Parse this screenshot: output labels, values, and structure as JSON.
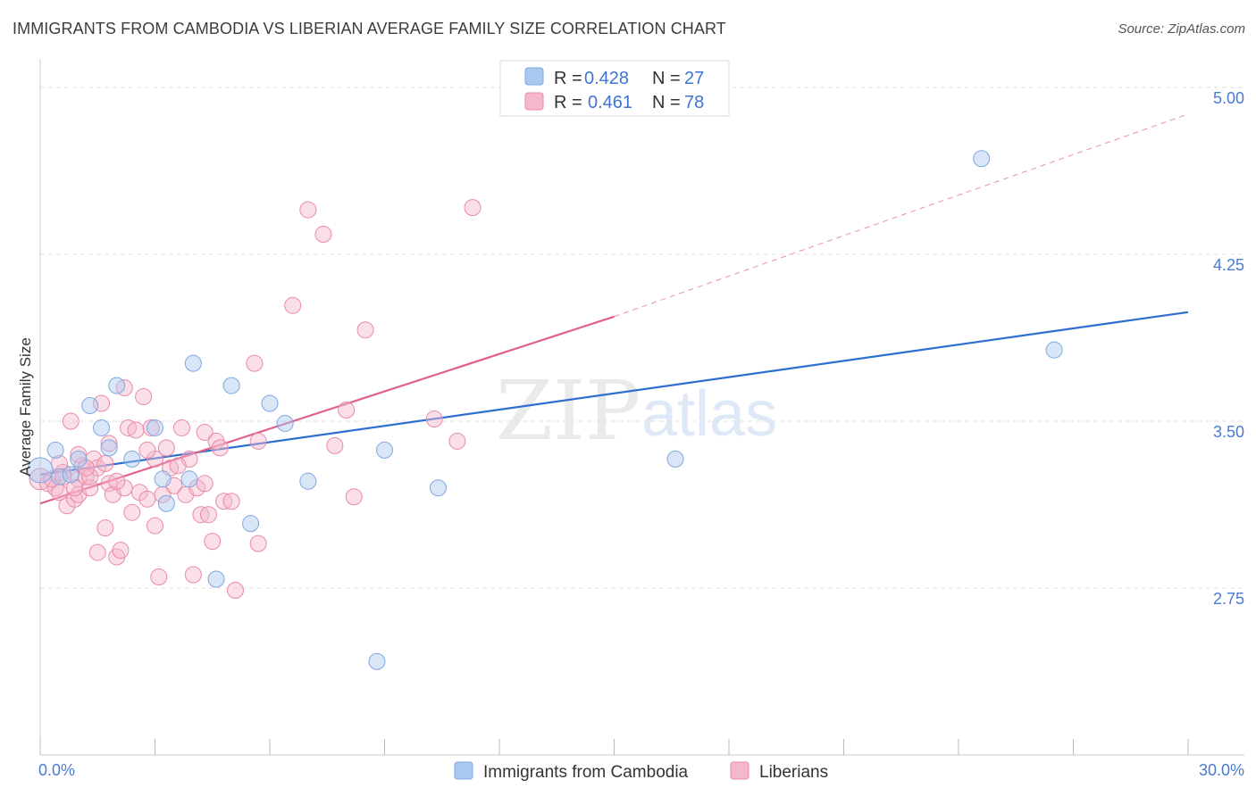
{
  "title": "IMMIGRANTS FROM CAMBODIA VS LIBERIAN AVERAGE FAMILY SIZE CORRELATION CHART",
  "source": "Source: ZipAtlas.com",
  "watermark": {
    "zip": "ZIP",
    "atlas": "atlas"
  },
  "colors": {
    "blue_fill": "#aac8ef",
    "blue_stroke": "#7ea7e0",
    "blue_line": "#2f6fd0",
    "pink_fill": "#f5b8cb",
    "pink_stroke": "#e98aa8",
    "pink_line": "#e0608a",
    "grid": "#e2e2e2",
    "tick_text": "#4a7bd0"
  },
  "chart_data": {
    "type": "scatter",
    "title": "IMMIGRANTS FROM CAMBODIA VS LIBERIAN AVERAGE FAMILY SIZE CORRELATION CHART",
    "xlabel": "",
    "ylabel": "Average Family Size",
    "xlim": [
      0,
      30
    ],
    "ylim": [
      2.0,
      5.08
    ],
    "x_tick_labels": [
      "0.0%",
      "30.0%"
    ],
    "y_ticks": [
      2.75,
      3.5,
      4.25,
      5.0
    ],
    "y_tick_labels": [
      "2.75",
      "3.50",
      "4.25",
      "5.00"
    ],
    "grid": true,
    "legend_stats": [
      {
        "r_label": "R = ",
        "r_value": "0.428",
        "n_label": "N = ",
        "n_value": "27"
      },
      {
        "r_label": "R = ",
        "r_value": "0.461",
        "n_label": "N = ",
        "n_value": "78"
      }
    ],
    "series": [
      {
        "name": "Immigrants from Cambodia",
        "color": "blue",
        "trend": {
          "x0": 0,
          "y0": 3.26,
          "x1": 30,
          "y1": 3.99,
          "dashed_to": null
        },
        "points": [
          [
            0.0,
            3.28,
            14
          ],
          [
            0.4,
            3.37,
            9
          ],
          [
            0.5,
            3.25,
            9
          ],
          [
            0.8,
            3.26,
            9
          ],
          [
            1.0,
            3.33,
            9
          ],
          [
            1.3,
            3.57,
            9
          ],
          [
            1.6,
            3.47,
            9
          ],
          [
            1.8,
            3.38,
            9
          ],
          [
            2.0,
            3.66,
            9
          ],
          [
            2.4,
            3.33,
            9
          ],
          [
            3.0,
            3.47,
            9
          ],
          [
            3.2,
            3.24,
            9
          ],
          [
            3.3,
            3.13,
            9
          ],
          [
            3.9,
            3.24,
            9
          ],
          [
            4.0,
            3.76,
            9
          ],
          [
            4.6,
            2.79,
            9
          ],
          [
            5.0,
            3.66,
            9
          ],
          [
            5.5,
            3.04,
            9
          ],
          [
            6.0,
            3.58,
            9
          ],
          [
            6.4,
            3.49,
            9
          ],
          [
            7.0,
            3.23,
            9
          ],
          [
            9.0,
            3.37,
            9
          ],
          [
            8.8,
            2.42,
            9
          ],
          [
            10.4,
            3.2,
            9
          ],
          [
            16.6,
            3.33,
            9
          ],
          [
            24.6,
            4.68,
            9
          ],
          [
            26.5,
            3.82,
            9
          ]
        ]
      },
      {
        "name": "Liberians",
        "color": "pink",
        "trend": {
          "x0": 0,
          "y0": 3.13,
          "x1": 15,
          "y1": 3.97,
          "dashed_to": {
            "x": 30,
            "y": 4.88
          }
        },
        "points": [
          [
            0.0,
            3.24,
            12
          ],
          [
            0.2,
            3.22,
            9
          ],
          [
            0.4,
            3.2,
            9
          ],
          [
            0.5,
            3.18,
            9
          ],
          [
            0.6,
            3.27,
            9
          ],
          [
            0.7,
            3.12,
            9
          ],
          [
            0.8,
            3.5,
            9
          ],
          [
            0.9,
            3.15,
            9
          ],
          [
            1.0,
            3.24,
            9
          ],
          [
            1.0,
            3.17,
            9
          ],
          [
            1.1,
            3.3,
            9
          ],
          [
            1.2,
            3.25,
            9
          ],
          [
            1.3,
            3.2,
            9
          ],
          [
            1.4,
            3.33,
            9
          ],
          [
            1.5,
            3.29,
            9
          ],
          [
            1.5,
            2.91,
            9
          ],
          [
            1.6,
            3.58,
            9
          ],
          [
            1.7,
            3.02,
            9
          ],
          [
            1.8,
            3.22,
            9
          ],
          [
            1.8,
            3.4,
            9
          ],
          [
            1.9,
            3.17,
            9
          ],
          [
            2.0,
            2.89,
            9
          ],
          [
            2.1,
            2.92,
            9
          ],
          [
            2.2,
            3.2,
            9
          ],
          [
            2.2,
            3.65,
            9
          ],
          [
            2.3,
            3.47,
            9
          ],
          [
            2.4,
            3.09,
            9
          ],
          [
            2.5,
            3.46,
            9
          ],
          [
            2.6,
            3.18,
            9
          ],
          [
            2.7,
            3.61,
            9
          ],
          [
            2.8,
            3.15,
            9
          ],
          [
            2.9,
            3.47,
            9
          ],
          [
            3.0,
            3.03,
            9
          ],
          [
            3.0,
            3.33,
            9
          ],
          [
            3.1,
            2.8,
            9
          ],
          [
            3.2,
            3.17,
            9
          ],
          [
            3.3,
            3.38,
            9
          ],
          [
            3.4,
            3.29,
            9
          ],
          [
            3.5,
            3.21,
            9
          ],
          [
            3.7,
            3.47,
            9
          ],
          [
            3.8,
            3.17,
            9
          ],
          [
            3.9,
            3.33,
            9
          ],
          [
            4.0,
            2.81,
            9
          ],
          [
            4.1,
            3.2,
            9
          ],
          [
            4.2,
            3.08,
            9
          ],
          [
            4.3,
            3.45,
            9
          ],
          [
            4.4,
            3.08,
            9
          ],
          [
            4.5,
            2.96,
            9
          ],
          [
            4.6,
            3.41,
            9
          ],
          [
            4.7,
            3.38,
            9
          ],
          [
            4.8,
            3.14,
            9
          ],
          [
            5.0,
            3.14,
            9
          ],
          [
            5.1,
            2.74,
            9
          ],
          [
            5.6,
            3.76,
            9
          ],
          [
            5.7,
            2.95,
            9
          ],
          [
            5.7,
            3.41,
            9
          ],
          [
            6.6,
            4.02,
            9
          ],
          [
            7.0,
            4.45,
            9
          ],
          [
            7.4,
            4.34,
            9
          ],
          [
            7.7,
            3.39,
            9
          ],
          [
            8.0,
            3.55,
            9
          ],
          [
            8.2,
            3.16,
            9
          ],
          [
            8.5,
            3.91,
            9
          ],
          [
            10.3,
            3.51,
            9
          ],
          [
            10.9,
            3.41,
            9
          ],
          [
            11.3,
            4.46,
            9
          ],
          [
            1.3,
            3.25,
            9
          ],
          [
            0.9,
            3.2,
            9
          ],
          [
            0.3,
            3.24,
            9
          ],
          [
            0.5,
            3.31,
            9
          ],
          [
            1.0,
            3.35,
            9
          ],
          [
            2.8,
            3.37,
            9
          ],
          [
            3.6,
            3.3,
            9
          ],
          [
            4.3,
            3.22,
            9
          ],
          [
            0.6,
            3.25,
            9
          ],
          [
            1.2,
            3.29,
            9
          ],
          [
            1.7,
            3.31,
            9
          ],
          [
            2.0,
            3.23,
            9
          ]
        ]
      }
    ]
  }
}
